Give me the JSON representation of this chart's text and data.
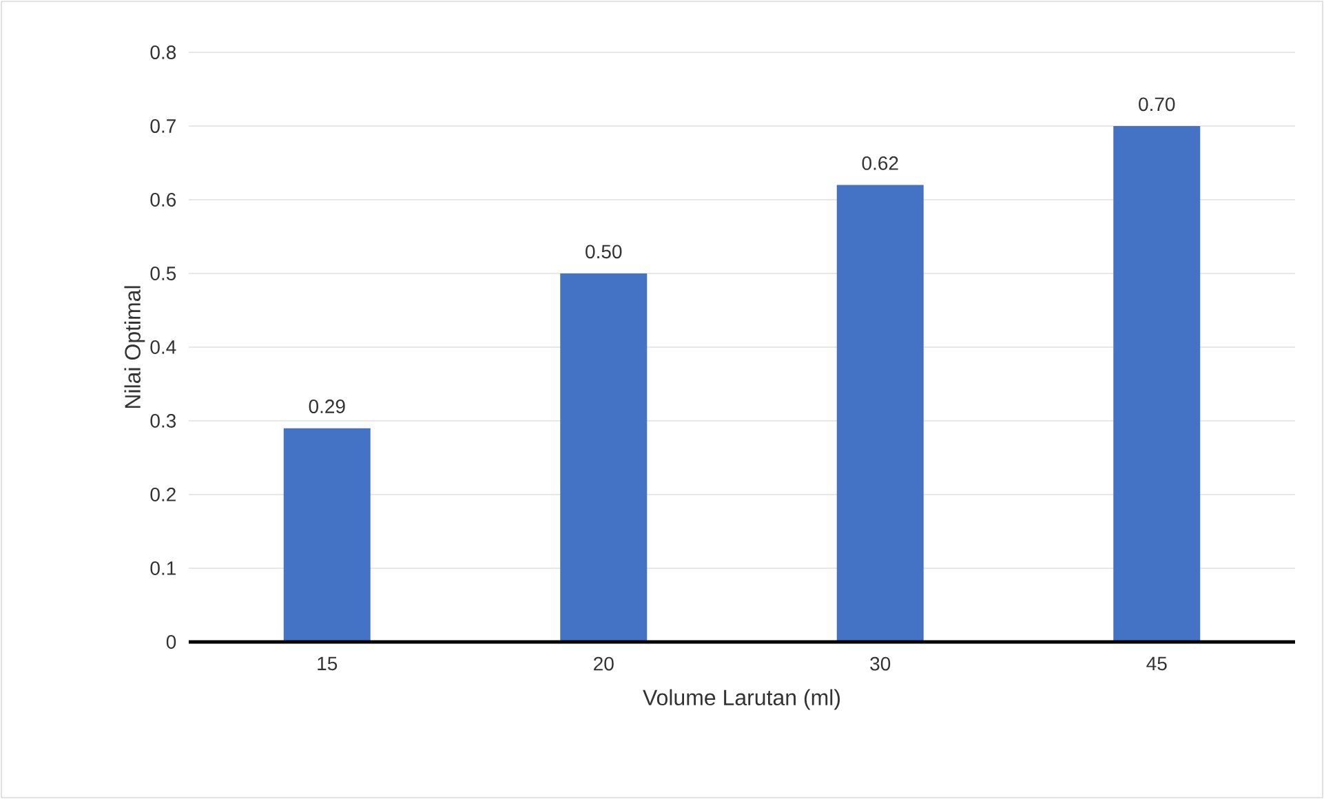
{
  "chart_data": {
    "type": "bar",
    "xlabel": "Volume Larutan (ml)",
    "ylabel": "Nilai Optimal",
    "categories": [
      "15",
      "20",
      "30",
      "45"
    ],
    "values": [
      0.29,
      0.5,
      0.62,
      0.7
    ],
    "value_labels": [
      "0.29",
      "0.50",
      "0.62",
      "0.70"
    ],
    "color": "#4472c4",
    "ylim": [
      0,
      0.8
    ],
    "yticks": [
      0,
      0.1,
      0.2,
      0.3,
      0.4,
      0.5,
      0.6,
      0.7,
      0.8
    ],
    "grid": "y"
  }
}
